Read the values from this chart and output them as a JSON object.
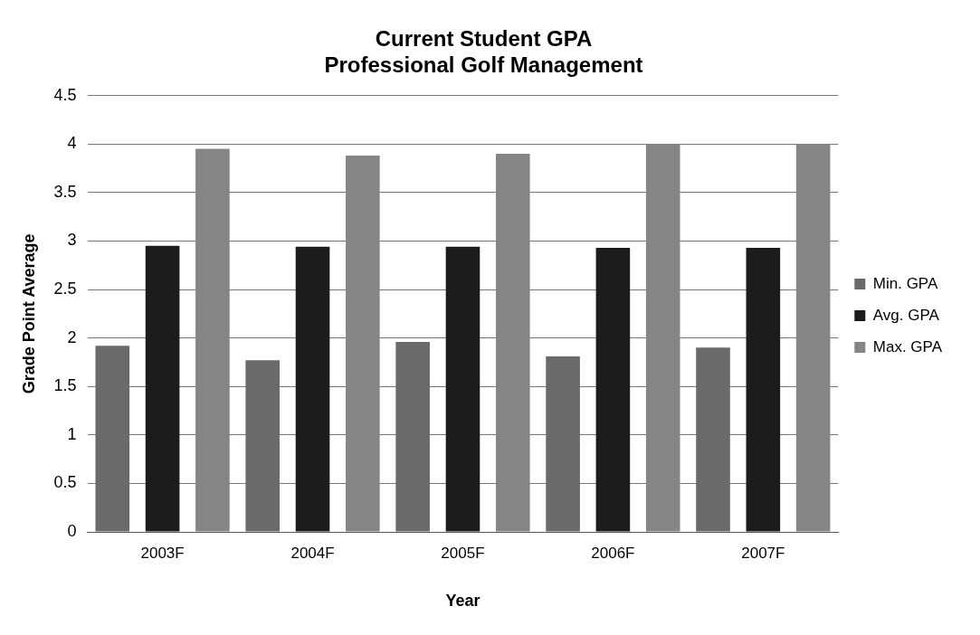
{
  "chart_data": {
    "type": "bar",
    "title": "Current Student GPA\nProfessional Golf Management",
    "xlabel": "Year",
    "ylabel": "Grade Point Average",
    "categories": [
      "2003F",
      "2004F",
      "2005F",
      "2006F",
      "2007F"
    ],
    "series": [
      {
        "name": "Min. GPA",
        "color": "#6a6a6a",
        "values": [
          1.92,
          1.77,
          1.96,
          1.81,
          1.9
        ]
      },
      {
        "name": "Avg. GPA",
        "color": "#1c1c1c",
        "values": [
          2.95,
          2.94,
          2.94,
          2.93,
          2.93
        ]
      },
      {
        "name": "Max. GPA",
        "color": "#858585",
        "values": [
          3.95,
          3.88,
          3.9,
          4.0,
          4.0
        ]
      }
    ],
    "ylim": [
      0,
      4.5
    ],
    "yticks": [
      0,
      {
        "value": 0.5,
        "label": "0.5"
      },
      1,
      {
        "value": 1.5,
        "label": "1.5"
      },
      2,
      {
        "value": 2.5,
        "label": "2.5"
      },
      3,
      {
        "value": 3.5,
        "label": "3.5"
      },
      4,
      {
        "value": 4.5,
        "label": "4.5"
      }
    ],
    "grid": "y",
    "legend": "right"
  }
}
